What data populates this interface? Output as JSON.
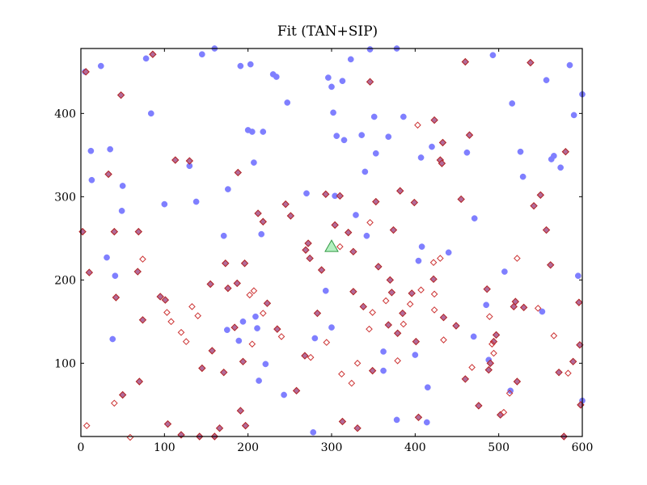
{
  "chart_data": {
    "type": "scatter",
    "title": "Fit (TAN+SIP)",
    "xlabel": "",
    "ylabel": "",
    "xlim": [
      0,
      600
    ],
    "ylim": [
      12,
      478
    ],
    "xticks": [
      0,
      100,
      200,
      300,
      400,
      500,
      600
    ],
    "yticks": [
      100,
      200,
      300,
      400
    ],
    "grid": false,
    "colors": {
      "blue_fill": "#7f7fff",
      "diamond_fill": "#b36b9a",
      "diamond_edge": "#b22222",
      "open_diamond_edge": "#cc3333",
      "triangle_fill": "#b3f0c0",
      "triangle_edge": "#339944"
    },
    "series": [
      {
        "marker": "circle",
        "points": [
          [
            5,
            450
          ],
          [
            12,
            355
          ],
          [
            13,
            320
          ],
          [
            24,
            457
          ],
          [
            31,
            227
          ],
          [
            35,
            357
          ],
          [
            38,
            129
          ],
          [
            41,
            205
          ],
          [
            49,
            283
          ],
          [
            50,
            313
          ],
          [
            78,
            466
          ],
          [
            84,
            400
          ],
          [
            100,
            291
          ],
          [
            130,
            337
          ],
          [
            138,
            294
          ],
          [
            145,
            471
          ],
          [
            160,
            478
          ],
          [
            171,
            253
          ],
          [
            176,
            309
          ],
          [
            189,
            127
          ],
          [
            191,
            457
          ],
          [
            194,
            150
          ],
          [
            203,
            459
          ],
          [
            205,
            378
          ],
          [
            207,
            341
          ],
          [
            209,
            156
          ],
          [
            211,
            142
          ],
          [
            213,
            79
          ],
          [
            216,
            255
          ],
          [
            218,
            378
          ],
          [
            221,
            99
          ],
          [
            230,
            447
          ],
          [
            234,
            444
          ],
          [
            243,
            62
          ],
          [
            247,
            413
          ],
          [
            270,
            304
          ],
          [
            278,
            17
          ],
          [
            293,
            187
          ],
          [
            296,
            443
          ],
          [
            300,
            432
          ],
          [
            302,
            401
          ],
          [
            304,
            301
          ],
          [
            306,
            373
          ],
          [
            313,
            439
          ],
          [
            315,
            368
          ],
          [
            323,
            465
          ],
          [
            329,
            278
          ],
          [
            336,
            374
          ],
          [
            342,
            253
          ],
          [
            346,
            477
          ],
          [
            351,
            396
          ],
          [
            353,
            352
          ],
          [
            362,
            91
          ],
          [
            362,
            114
          ],
          [
            368,
            372
          ],
          [
            378,
            478
          ],
          [
            386,
            396
          ],
          [
            407,
            347
          ],
          [
            414,
            29
          ],
          [
            400,
            110
          ],
          [
            404,
            223
          ],
          [
            378,
            32
          ],
          [
            440,
            233
          ],
          [
            462,
            353
          ],
          [
            471,
            274
          ],
          [
            488,
            104
          ],
          [
            493,
            470
          ],
          [
            507,
            210
          ],
          [
            514,
            67
          ],
          [
            516,
            412
          ],
          [
            526,
            354
          ],
          [
            529,
            324
          ],
          [
            552,
            162
          ],
          [
            557,
            440
          ],
          [
            563,
            345
          ],
          [
            566,
            349
          ],
          [
            574,
            335
          ],
          [
            585,
            458
          ],
          [
            590,
            398
          ],
          [
            595,
            205
          ],
          [
            600,
            423
          ],
          [
            600,
            55
          ],
          [
            175,
            140
          ],
          [
            280,
            130
          ],
          [
            300,
            143
          ],
          [
            408,
            240
          ],
          [
            415,
            71
          ],
          [
            470,
            132
          ],
          [
            200,
            380
          ],
          [
            340,
            330
          ],
          [
            420,
            360
          ],
          [
            485,
            170
          ]
        ]
      },
      {
        "marker": "diamond",
        "points": [
          [
            2,
            258
          ],
          [
            6,
            450
          ],
          [
            10,
            209
          ],
          [
            33,
            327
          ],
          [
            40,
            258
          ],
          [
            42,
            179
          ],
          [
            48,
            422
          ],
          [
            50,
            62
          ],
          [
            68,
            210
          ],
          [
            69,
            258
          ],
          [
            70,
            78
          ],
          [
            74,
            152
          ],
          [
            86,
            471
          ],
          [
            101,
            176
          ],
          [
            104,
            27
          ],
          [
            113,
            344
          ],
          [
            120,
            14
          ],
          [
            130,
            343
          ],
          [
            142,
            12
          ],
          [
            145,
            94
          ],
          [
            155,
            195
          ],
          [
            157,
            115
          ],
          [
            166,
            22
          ],
          [
            171,
            89
          ],
          [
            173,
            220
          ],
          [
            176,
            190
          ],
          [
            184,
            143
          ],
          [
            187,
            196
          ],
          [
            188,
            329
          ],
          [
            191,
            43
          ],
          [
            194,
            102
          ],
          [
            196,
            220
          ],
          [
            197,
            25
          ],
          [
            212,
            280
          ],
          [
            218,
            270
          ],
          [
            223,
            172
          ],
          [
            235,
            141
          ],
          [
            245,
            291
          ],
          [
            251,
            277
          ],
          [
            258,
            67
          ],
          [
            268,
            109
          ],
          [
            269,
            236
          ],
          [
            272,
            244
          ],
          [
            274,
            226
          ],
          [
            283,
            160
          ],
          [
            288,
            212
          ],
          [
            293,
            303
          ],
          [
            304,
            266
          ],
          [
            310,
            301
          ],
          [
            313,
            30
          ],
          [
            320,
            257
          ],
          [
            326,
            186
          ],
          [
            326,
            234
          ],
          [
            331,
            22
          ],
          [
            338,
            168
          ],
          [
            346,
            438
          ],
          [
            349,
            91
          ],
          [
            353,
            294
          ],
          [
            356,
            216
          ],
          [
            368,
            146
          ],
          [
            372,
            185
          ],
          [
            374,
            260
          ],
          [
            379,
            136
          ],
          [
            382,
            307
          ],
          [
            385,
            160
          ],
          [
            396,
            184
          ],
          [
            399,
            293
          ],
          [
            401,
            126
          ],
          [
            404,
            35
          ],
          [
            422,
            201
          ],
          [
            423,
            392
          ],
          [
            430,
            344
          ],
          [
            432,
            340
          ],
          [
            433,
            365
          ],
          [
            434,
            155
          ],
          [
            449,
            145
          ],
          [
            455,
            297
          ],
          [
            460,
            81
          ],
          [
            465,
            374
          ],
          [
            476,
            49
          ],
          [
            486,
            189
          ],
          [
            488,
            92
          ],
          [
            490,
            100
          ],
          [
            494,
            126
          ],
          [
            497,
            134
          ],
          [
            502,
            38
          ],
          [
            518,
            168
          ],
          [
            520,
            174
          ],
          [
            522,
            78
          ],
          [
            530,
            167
          ],
          [
            538,
            461
          ],
          [
            542,
            289
          ],
          [
            550,
            302
          ],
          [
            557,
            260
          ],
          [
            562,
            218
          ],
          [
            572,
            89
          ],
          [
            578,
            12
          ],
          [
            580,
            354
          ],
          [
            589,
            102
          ],
          [
            596,
            173
          ],
          [
            597,
            122
          ],
          [
            598,
            50
          ],
          [
            160,
            12
          ],
          [
            95,
            180
          ],
          [
            460,
            462
          ],
          [
            370,
            200
          ]
        ]
      },
      {
        "marker": "open-diamond",
        "points": [
          [
            7,
            25
          ],
          [
            40,
            52
          ],
          [
            59,
            11
          ],
          [
            74,
            225
          ],
          [
            103,
            161
          ],
          [
            108,
            150
          ],
          [
            120,
            137
          ],
          [
            126,
            126
          ],
          [
            133,
            168
          ],
          [
            140,
            157
          ],
          [
            205,
            123
          ],
          [
            202,
            182
          ],
          [
            207,
            187
          ],
          [
            218,
            160
          ],
          [
            240,
            132
          ],
          [
            275,
            107
          ],
          [
            310,
            240
          ],
          [
            294,
            125
          ],
          [
            312,
            87
          ],
          [
            324,
            76
          ],
          [
            331,
            100
          ],
          [
            345,
            141
          ],
          [
            346,
            269
          ],
          [
            349,
            161
          ],
          [
            365,
            175
          ],
          [
            379,
            103
          ],
          [
            386,
            147
          ],
          [
            394,
            171
          ],
          [
            403,
            386
          ],
          [
            407,
            188
          ],
          [
            423,
            183
          ],
          [
            423,
            164
          ],
          [
            434,
            128
          ],
          [
            430,
            226
          ],
          [
            422,
            221
          ],
          [
            468,
            95
          ],
          [
            489,
            156
          ],
          [
            492,
            123
          ],
          [
            494,
            112
          ],
          [
            506,
            41
          ],
          [
            513,
            64
          ],
          [
            522,
            226
          ],
          [
            547,
            166
          ],
          [
            566,
            133
          ],
          [
            583,
            88
          ]
        ]
      },
      {
        "marker": "triangle",
        "points": [
          [
            300,
            240
          ]
        ]
      }
    ]
  }
}
